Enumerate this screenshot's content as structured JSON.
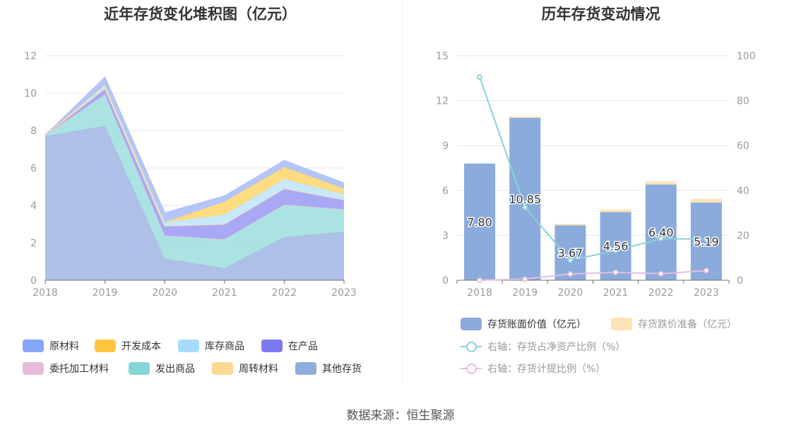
{
  "source_note": "数据来源：恒生聚源",
  "chart_data": [
    {
      "type": "area",
      "title": "近年存货变化堆积图（亿元）",
      "x": [
        "2018",
        "2019",
        "2020",
        "2021",
        "2022",
        "2023"
      ],
      "ylim": [
        0,
        12
      ],
      "yticks": [
        0,
        2,
        4,
        6,
        8,
        10,
        12
      ],
      "grid": true,
      "stacked": true,
      "series": [
        {
          "name": "其他存货",
          "color": "#aabde6",
          "values": [
            7.7,
            8.25,
            1.15,
            0.65,
            2.3,
            2.6
          ]
        },
        {
          "name": "发出商品",
          "color": "#a6e1e2",
          "values": [
            0.05,
            1.7,
            1.25,
            1.55,
            1.75,
            1.2
          ]
        },
        {
          "name": "委托加工材料",
          "color": "#e8bcdd",
          "values": [
            0,
            0,
            0,
            0,
            0,
            0
          ]
        },
        {
          "name": "在产品",
          "color": "#a3a3f4",
          "values": [
            0,
            0.3,
            0.5,
            0.8,
            0.85,
            0.5
          ]
        },
        {
          "name": "周转材料",
          "color": "#ffdca0",
          "values": [
            0,
            0,
            0,
            0,
            0,
            0
          ]
        },
        {
          "name": "库存商品",
          "color": "#c5e7fc",
          "values": [
            0,
            0.2,
            0.2,
            0.5,
            0.5,
            0.3
          ]
        },
        {
          "name": "开发成本",
          "color": "#ffd97a",
          "values": [
            0,
            0,
            0,
            0.7,
            0.65,
            0.3
          ]
        },
        {
          "name": "原材料",
          "color": "#b0c2f8",
          "values": [
            0,
            0.4,
            0.5,
            0.3,
            0.35,
            0.3
          ]
        }
      ],
      "legend": {
        "position": "bottom",
        "items": [
          {
            "name": "原材料",
            "color": "#84a7fb"
          },
          {
            "name": "开发成本",
            "color": "#ffc53d"
          },
          {
            "name": "库存商品",
            "color": "#a6dcfb"
          },
          {
            "name": "在产品",
            "color": "#7b79f1"
          },
          {
            "name": "委托加工材料",
            "color": "#e7bbdb"
          },
          {
            "name": "发出商品",
            "color": "#86d6d8"
          },
          {
            "name": "周转材料",
            "color": "#ffd794"
          },
          {
            "name": "其他存货",
            "color": "#8eaedd"
          }
        ]
      }
    },
    {
      "type": "bar",
      "title": "历年存货变动情况",
      "categories": [
        "2018",
        "2019",
        "2020",
        "2021",
        "2022",
        "2023"
      ],
      "ylim": [
        0,
        15
      ],
      "yticks": [
        0,
        3,
        6,
        9,
        12,
        15
      ],
      "y2lim": [
        0,
        100
      ],
      "y2ticks": [
        0,
        20,
        40,
        60,
        80,
        100
      ],
      "grid": true,
      "series": [
        {
          "name": "存货账面价值（亿元）",
          "color": "#8aabdb",
          "values": [
            7.8,
            10.85,
            3.67,
            4.56,
            6.4,
            5.19
          ],
          "labels": [
            "7.80",
            "10.85",
            "3.67",
            "4.56",
            "6.40",
            "5.19"
          ]
        },
        {
          "name": "存货跌价准备（亿元）",
          "color": "#ffe2b5",
          "values": [
            0,
            0.1,
            0.1,
            0.15,
            0.2,
            0.25
          ]
        },
        {
          "name": "右轴：存货占净资产比例（%）",
          "type": "line",
          "axis": "right",
          "color": "#88d3d8",
          "values": [
            90.5,
            32.5,
            8.9,
            13.2,
            18.5,
            18.3
          ]
        },
        {
          "name": "右轴：存货计提比例（%）",
          "type": "line",
          "axis": "right",
          "color": "#e6bde0",
          "values": [
            0,
            0.5,
            2.8,
            3.5,
            2.9,
            4.3
          ]
        }
      ],
      "legend": {
        "position": "bottom"
      }
    }
  ]
}
